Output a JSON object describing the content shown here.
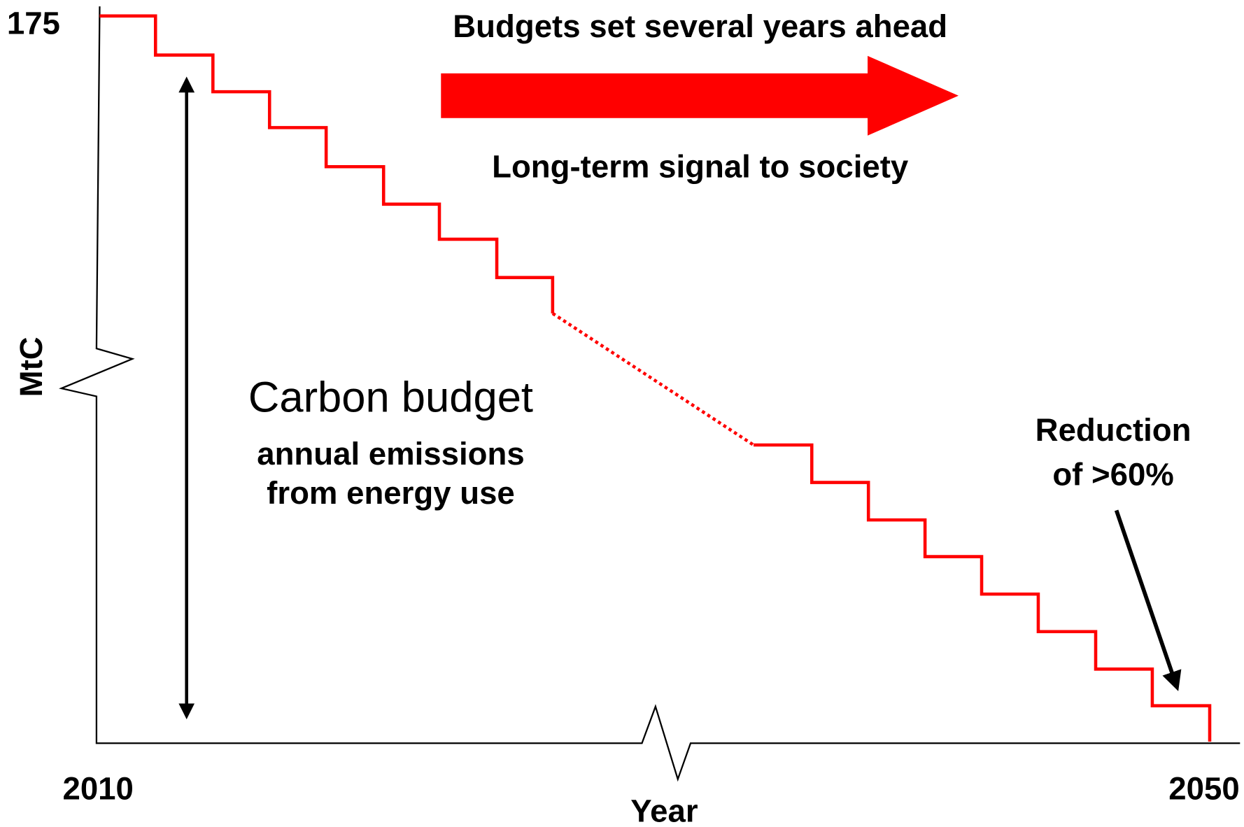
{
  "axis": {
    "y_top_label": "175",
    "y_label": "MtC",
    "x_start_label": "2010",
    "x_end_label": "2050",
    "x_label": "Year"
  },
  "annotations": {
    "top": "Budgets set several years ahead",
    "signal": "Long-term signal to society",
    "budget_title": "Carbon budget",
    "budget_line1": "annual emissions",
    "budget_line2": "from energy use",
    "reduction_line1": "Reduction",
    "reduction_line2": "of >60%"
  }
}
